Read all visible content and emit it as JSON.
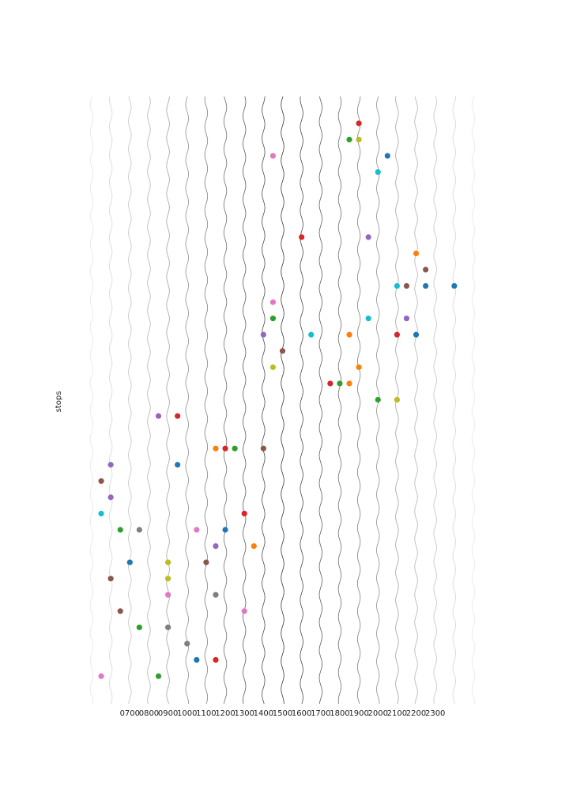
{
  "chart_data": {
    "type": "scatter",
    "y_label": "stops",
    "x": [
      19,
      18.5,
      19,
      14.5,
      20.5,
      20,
      16,
      19.5,
      22,
      22.5,
      21,
      21.5,
      22.5,
      24,
      14.5,
      14.5,
      19.5,
      21.5,
      14,
      16.5,
      18.5,
      21,
      22,
      15,
      14.5,
      19,
      17.5,
      18,
      18.5,
      20,
      21,
      8.5,
      9.5,
      11.5,
      12,
      12.5,
      14,
      6,
      9.5,
      5.5,
      6,
      5.5,
      13,
      6.5,
      7.5,
      10.5,
      12,
      11.5,
      13.5,
      7,
      9,
      11,
      6,
      9,
      9,
      11.5,
      6.5,
      13,
      7.5,
      9,
      10,
      10.5,
      11.5,
      5.5,
      8.5
    ],
    "values": [
      1,
      2,
      2,
      3,
      3,
      4,
      8,
      8,
      9,
      10,
      11,
      11,
      11,
      11,
      12,
      13,
      13,
      13,
      14,
      14,
      14,
      14,
      14,
      15,
      16,
      16,
      17,
      17,
      17,
      18,
      18,
      19,
      19,
      21,
      21,
      21,
      21,
      22,
      22,
      23,
      24,
      25,
      25,
      26,
      26,
      26,
      26,
      27,
      27,
      28,
      28,
      28,
      29,
      29,
      30,
      30,
      31,
      31,
      32,
      32,
      33,
      34,
      34,
      35,
      35
    ],
    "colors": [
      "#d62728",
      "#2ca02c",
      "#bcbd22",
      "#e377c2",
      "#1f77b4",
      "#17becf",
      "#d62728",
      "#9467bd",
      "#ff7f0e",
      "#8c564b",
      "#17becf",
      "#8c564b",
      "#1f77b4",
      "#1f77b4",
      "#e377c2",
      "#2ca02c",
      "#17becf",
      "#9467bd",
      "#9467bd",
      "#17becf",
      "#ff7f0e",
      "#d62728",
      "#1f77b4",
      "#8c564b",
      "#bcbd22",
      "#ff7f0e",
      "#d62728",
      "#2ca02c",
      "#ff7f0e",
      "#2ca02c",
      "#bcbd22",
      "#9467bd",
      "#d62728",
      "#ff7f0e",
      "#d62728",
      "#2ca02c",
      "#8c564b",
      "#9467bd",
      "#1f77b4",
      "#8c564b",
      "#9467bd",
      "#17becf",
      "#d62728",
      "#2ca02c",
      "#7f7f7f",
      "#e377c2",
      "#1f77b4",
      "#9467bd",
      "#ff7f0e",
      "#1f77b4",
      "#bcbd22",
      "#8c564b",
      "#8c564b",
      "#bcbd22",
      "#e377c2",
      "#7f7f7f",
      "#8c564b",
      "#e377c2",
      "#2ca02c",
      "#7f7f7f",
      "#7f7f7f",
      "#1f77b4",
      "#d62728",
      "#e377c2",
      "#2ca02c"
    ],
    "xlim": [
      5,
      25
    ],
    "ylim": [
      -0.65,
      36.7
    ],
    "y_inverted": true,
    "xticks": [
      {
        "value": 7,
        "label": "0700"
      },
      {
        "value": 8,
        "label": "0800"
      },
      {
        "value": 9,
        "label": "0900"
      },
      {
        "value": 10,
        "label": "1000"
      },
      {
        "value": 11,
        "label": "1100"
      },
      {
        "value": 12,
        "label": "1200"
      },
      {
        "value": 13,
        "label": "1300"
      },
      {
        "value": 14,
        "label": "1400"
      },
      {
        "value": 15,
        "label": "1500"
      },
      {
        "value": 16,
        "label": "1600"
      },
      {
        "value": 17,
        "label": "1700"
      },
      {
        "value": 18,
        "label": "1800"
      },
      {
        "value": 19,
        "label": "1900"
      },
      {
        "value": 20,
        "label": "2000"
      },
      {
        "value": 21,
        "label": "2100"
      },
      {
        "value": 22,
        "label": "2200"
      },
      {
        "value": 23,
        "label": "2300"
      }
    ],
    "grid": true
  }
}
